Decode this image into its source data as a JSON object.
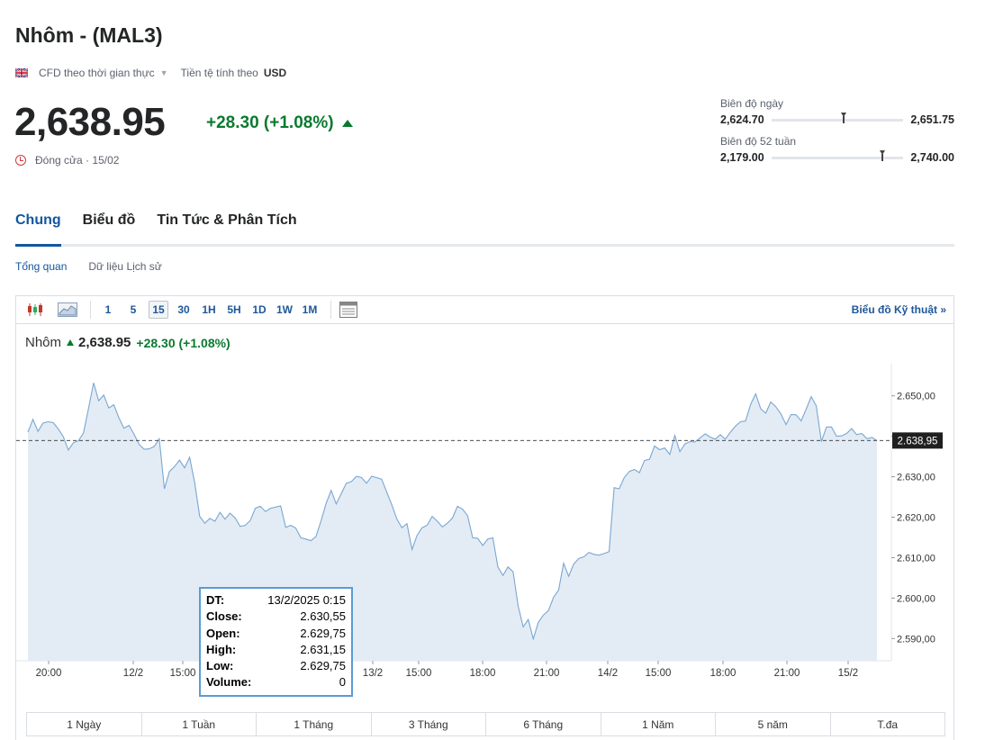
{
  "header": {
    "title": "Nhôm - (MAL3)",
    "feed": "CFD theo thời gian thực",
    "currency_label": "Tiền tệ tính theo",
    "currency": "USD",
    "price": "2,638.95",
    "change": "+28.30 (+1.08%)",
    "close_status": "Đóng cửa · 15/02"
  },
  "ranges": {
    "day": {
      "label": "Biên độ ngày",
      "low": "2,624.70",
      "high": "2,651.75",
      "position": 0.53
    },
    "week52": {
      "label": "Biên độ 52 tuần",
      "low": "2,179.00",
      "high": "2,740.00",
      "position": 0.82
    }
  },
  "tabs": [
    "Chung",
    "Biểu đồ",
    "Tin Tức & Phân Tích"
  ],
  "subtabs": [
    "Tổng quan",
    "Dữ liệu Lịch sử"
  ],
  "toolbar": {
    "intervals": [
      "1",
      "5",
      "15",
      "30",
      "1H",
      "5H",
      "1D",
      "1W",
      "1M"
    ],
    "active_interval": "15",
    "technical_link": "Biểu đồ Kỹ thuật »"
  },
  "legend": {
    "name": "Nhôm",
    "last": "2,638.95",
    "change": "+28.30",
    "pct": "(+1.08%)"
  },
  "tooltip": {
    "rows": [
      {
        "k": "DT:",
        "v": "13/2/2025 0:15"
      },
      {
        "k": "Close:",
        "v": "2.630,55"
      },
      {
        "k": "Open:",
        "v": "2.629,75"
      },
      {
        "k": "High:",
        "v": "2.631,15"
      },
      {
        "k": "Low:",
        "v": "2.629,75"
      },
      {
        "k": "Volume:",
        "v": "0"
      }
    ]
  },
  "periods": [
    "1 Ngày",
    "1 Tuần",
    "1 Tháng",
    "3 Tháng",
    "6 Tháng",
    "1 Năm",
    "5 năm",
    "T.đa"
  ],
  "chart_data": {
    "type": "area",
    "x_ticks": [
      "20:00",
      "12/2",
      "15:00",
      "18:00",
      "13/2",
      "15:00",
      "18:00",
      "21:00",
      "14/2",
      "15:00",
      "18:00",
      "21:00",
      "15/2"
    ],
    "y_ticks": [
      "2.650,00",
      "2.640,00",
      "2.630,00",
      "2.620,00",
      "2.610,00",
      "2.600,00",
      "2.590,00"
    ],
    "ylim": [
      2584.5,
      2657.5
    ],
    "last_value": 2638.95,
    "last_label": "2.638,95",
    "values": [
      2641.0,
      2644.2,
      2641.2,
      2643.3,
      2643.6,
      2643.4,
      2641.8,
      2639.9,
      2636.6,
      2638.4,
      2638.9,
      2640.8,
      2647.0,
      2653.2,
      2648.8,
      2650.2,
      2647.0,
      2647.8,
      2644.6,
      2642.0,
      2642.7,
      2640.5,
      2638.0,
      2636.8,
      2636.9,
      2637.5,
      2639.4,
      2627.0,
      2631.3,
      2632.5,
      2634.1,
      2632.2,
      2634.8,
      2628.6,
      2620.2,
      2618.5,
      2619.7,
      2619.0,
      2621.2,
      2619.5,
      2621.0,
      2619.8,
      2617.7,
      2618.0,
      2619.2,
      2622.2,
      2622.7,
      2621.4,
      2622.2,
      2622.5,
      2622.8,
      2617.5,
      2618.0,
      2617.3,
      2614.9,
      2614.6,
      2614.2,
      2615.2,
      2619.1,
      2623.4,
      2626.6,
      2623.3,
      2625.8,
      2628.4,
      2628.8,
      2630.1,
      2629.8,
      2628.4,
      2630.1,
      2629.8,
      2629.4,
      2626.2,
      2623.1,
      2619.5,
      2617.4,
      2618.4,
      2612.0,
      2615.5,
      2617.4,
      2618.0,
      2620.2,
      2619.0,
      2617.6,
      2618.5,
      2619.8,
      2622.7,
      2622.0,
      2620.4,
      2614.9,
      2614.8,
      2613.0,
      2614.6,
      2614.9,
      2607.7,
      2605.6,
      2607.7,
      2606.5,
      2598.0,
      2592.9,
      2594.7,
      2589.9,
      2594.0,
      2595.8,
      2596.9,
      2600.2,
      2602.0,
      2608.6,
      2605.4,
      2608.4,
      2609.8,
      2610.2,
      2611.3,
      2610.8,
      2610.6,
      2611.0,
      2611.5,
      2627.3,
      2627.0,
      2629.8,
      2631.3,
      2631.8,
      2631.0,
      2634.0,
      2634.3,
      2637.6,
      2636.7,
      2637.1,
      2635.5,
      2640.2,
      2636.2,
      2638.1,
      2638.7,
      2638.6,
      2639.6,
      2640.6,
      2639.8,
      2639.3,
      2640.4,
      2639.3,
      2641.0,
      2642.5,
      2643.6,
      2643.8,
      2647.9,
      2650.5,
      2646.8,
      2645.7,
      2648.5,
      2647.3,
      2645.5,
      2642.9,
      2645.4,
      2645.3,
      2643.8,
      2646.7,
      2649.8,
      2647.5,
      2638.7,
      2642.3,
      2642.3,
      2640.0,
      2640.1,
      2640.7,
      2641.9,
      2640.4,
      2640.7,
      2639.4,
      2639.7,
      2638.95
    ]
  }
}
